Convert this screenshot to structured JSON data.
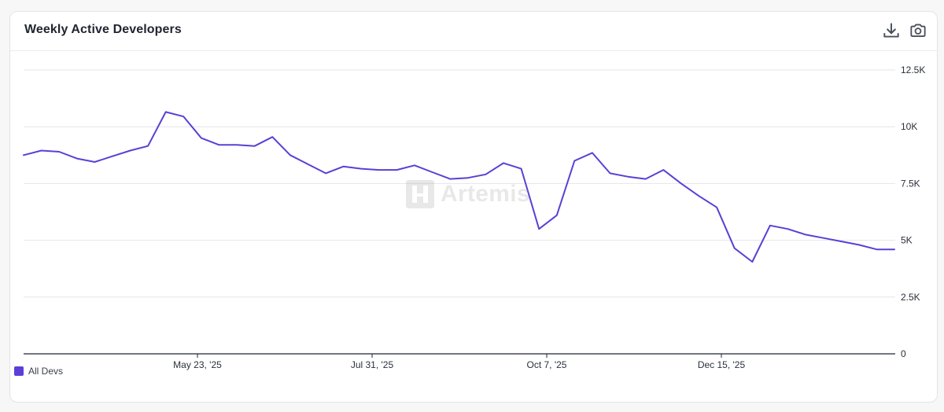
{
  "header": {
    "title": "Weekly Active Developers",
    "download_icon": "download-icon",
    "camera_icon": "camera-icon"
  },
  "watermark": {
    "text": "Artemis"
  },
  "legend": {
    "items": [
      {
        "label": "All Devs",
        "color": "#5b3fd6"
      }
    ]
  },
  "colors": {
    "line": "#5b3fd6",
    "grid": "#e6e6ea",
    "axis": "#1f2430",
    "tick_text": "#2a2f3a"
  },
  "chart_data": {
    "type": "line",
    "title": "Weekly Active Developers",
    "x_tick_labels": [
      "May 23, '25",
      "Jul 31, '25",
      "Oct 7, '25",
      "Dec 15, '25"
    ],
    "y_tick_labels": [
      "0",
      "2.5K",
      "5K",
      "7.5K",
      "10K",
      "12.5K"
    ],
    "y_ticks": [
      0,
      2500,
      5000,
      7500,
      10000,
      12500
    ],
    "ylim": [
      0,
      12500
    ],
    "grid": true,
    "legend_position": "bottom-left",
    "series": [
      {
        "name": "All Devs",
        "values": [
          8750,
          8950,
          8900,
          8600,
          8450,
          8700,
          8950,
          9150,
          10650,
          10450,
          9500,
          9200,
          9200,
          9150,
          9550,
          8750,
          8350,
          7950,
          8250,
          8150,
          8100,
          8100,
          8300,
          8000,
          7700,
          7750,
          7900,
          8400,
          8150,
          5500,
          6100,
          8500,
          8850,
          7950,
          7800,
          7700,
          8100,
          7500,
          6950,
          6450,
          4650,
          4050,
          5650,
          5500,
          5250,
          5100,
          4950,
          4800,
          4600,
          4600
        ]
      }
    ]
  }
}
